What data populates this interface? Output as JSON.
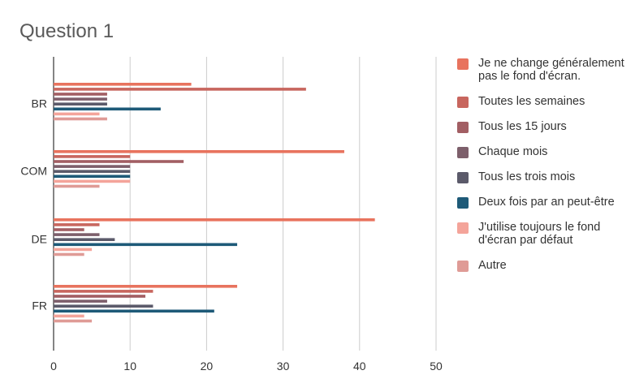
{
  "chart_data": {
    "type": "bar",
    "orientation": "horizontal",
    "title": "Question 1",
    "categories": [
      "BR",
      "COM",
      "DE",
      "FR"
    ],
    "xlim": [
      0,
      50
    ],
    "xticks": [
      0,
      10,
      20,
      30,
      40,
      50
    ],
    "grid": true,
    "legend": "right",
    "series": [
      {
        "name": "Je ne change généralement pas le fond d'écran.",
        "color": "#e8735e",
        "values": [
          18,
          38,
          42,
          24
        ]
      },
      {
        "name": "Toutes les semaines",
        "color": "#c8665e",
        "values": [
          33,
          10,
          6,
          13
        ]
      },
      {
        "name": "Tous les 15 jours",
        "color": "#a25e63",
        "values": [
          7,
          17,
          4,
          12
        ]
      },
      {
        "name": "Chaque mois",
        "color": "#7d5f6b",
        "values": [
          7,
          10,
          6,
          7
        ]
      },
      {
        "name": "Tous les trois mois",
        "color": "#5b5a6a",
        "values": [
          7,
          10,
          8,
          13
        ]
      },
      {
        "name": "Deux fois par an peut-être",
        "color": "#1e5a78",
        "values": [
          14,
          10,
          24,
          21
        ]
      },
      {
        "name": "J'utilise toujours le fond d'écran par défaut",
        "color": "#f4a49a",
        "values": [
          6,
          10,
          5,
          4
        ]
      },
      {
        "name": "Autre",
        "color": "#df9b96",
        "values": [
          7,
          6,
          4,
          5
        ]
      }
    ]
  }
}
